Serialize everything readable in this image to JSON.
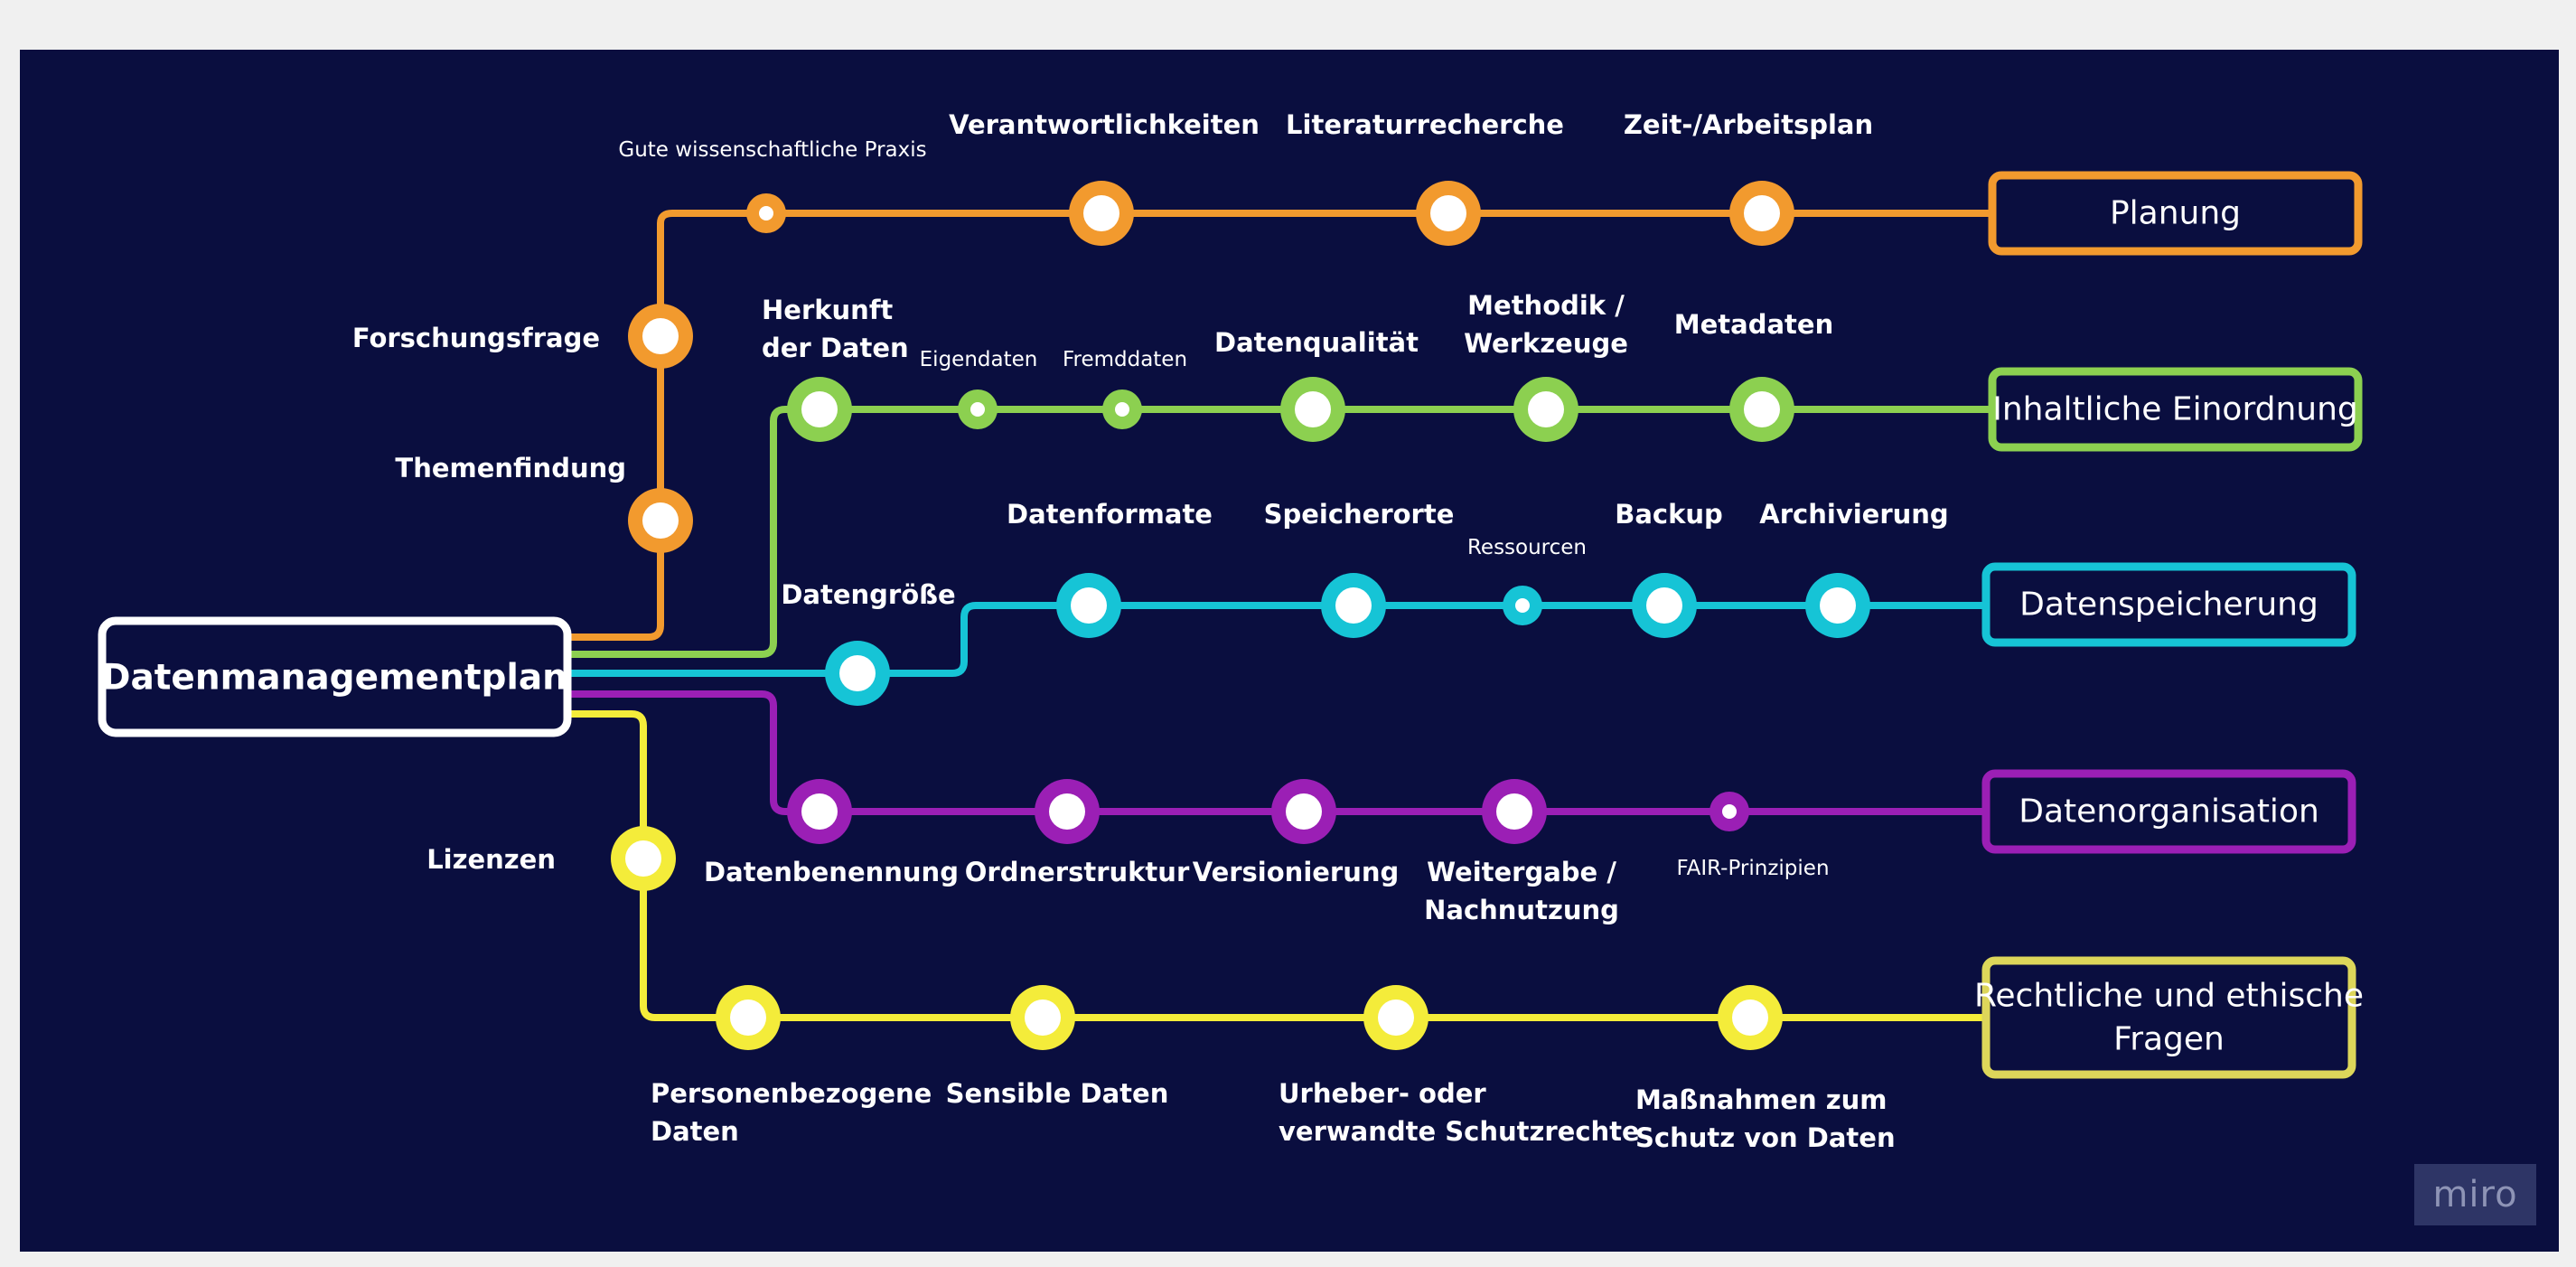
{
  "diagram": {
    "root": "Datenmanagementplan",
    "lines": [
      {
        "id": "planung",
        "color": "#f29a2e",
        "title": [
          "Planung"
        ],
        "stations": [
          {
            "label": [
              "Forschungsfrage"
            ],
            "size": "large"
          },
          {
            "label": [
              "Themenfindung"
            ],
            "size": "large"
          },
          {
            "label": [
              "Gute wissenschaftliche Praxis"
            ],
            "size": "small"
          },
          {
            "label": [
              "Verantwortlichkeiten"
            ],
            "size": "large"
          },
          {
            "label": [
              "Literaturrecherche"
            ],
            "size": "large"
          },
          {
            "label": [
              "Zeit-/Arbeitsplan"
            ],
            "size": "large"
          }
        ]
      },
      {
        "id": "inhalt",
        "color": "#8cd050",
        "title": [
          "Inhaltliche Einordnung"
        ],
        "stations": [
          {
            "label": [
              "Herkunft",
              "der Daten"
            ],
            "size": "large"
          },
          {
            "label": [
              "Eigendaten"
            ],
            "size": "small"
          },
          {
            "label": [
              "Fremddaten"
            ],
            "size": "small"
          },
          {
            "label": [
              "Datenqualität"
            ],
            "size": "large"
          },
          {
            "label": [
              "Methodik /",
              "Werkzeuge"
            ],
            "size": "large"
          },
          {
            "label": [
              "Metadaten"
            ],
            "size": "large"
          }
        ]
      },
      {
        "id": "speicher",
        "color": "#16c4d6",
        "title": [
          "Datenspeicherung"
        ],
        "stations": [
          {
            "label": [
              "Datengröße"
            ],
            "size": "large"
          },
          {
            "label": [
              "Datenformate"
            ],
            "size": "large"
          },
          {
            "label": [
              "Speicherorte"
            ],
            "size": "large"
          },
          {
            "label": [
              "Ressourcen"
            ],
            "size": "small"
          },
          {
            "label": [
              "Backup"
            ],
            "size": "large"
          },
          {
            "label": [
              "Archivierung"
            ],
            "size": "large"
          }
        ]
      },
      {
        "id": "organisation",
        "color": "#9b1fb5",
        "title": [
          "Datenorganisation"
        ],
        "stations": [
          {
            "label": [
              "Datenbenennung"
            ],
            "size": "large"
          },
          {
            "label": [
              "Ordnerstruktur"
            ],
            "size": "large"
          },
          {
            "label": [
              "Versionierung"
            ],
            "size": "large"
          },
          {
            "label": [
              "Weitergabe /",
              "Nachnutzung"
            ],
            "size": "large"
          },
          {
            "label": [
              "FAIR-Prinzipien"
            ],
            "size": "small"
          }
        ]
      },
      {
        "id": "recht",
        "color": "#f4ec3a",
        "title": [
          "Rechtliche und ethische",
          "Fragen"
        ],
        "stations": [
          {
            "label": [
              "Lizenzen"
            ],
            "size": "large"
          },
          {
            "label": [
              "Personenbezogene",
              "Daten"
            ],
            "size": "large"
          },
          {
            "label": [
              "Sensible Daten"
            ],
            "size": "large"
          },
          {
            "label": [
              "Urheber- oder",
              "verwandte Schutzrechte"
            ],
            "size": "large"
          },
          {
            "label": [
              "Maßnahmen zum",
              "Schutz von Daten"
            ],
            "size": "large"
          }
        ]
      }
    ],
    "title_border_overrides": {
      "recht": "#ddd65a"
    },
    "logo": "miro"
  }
}
